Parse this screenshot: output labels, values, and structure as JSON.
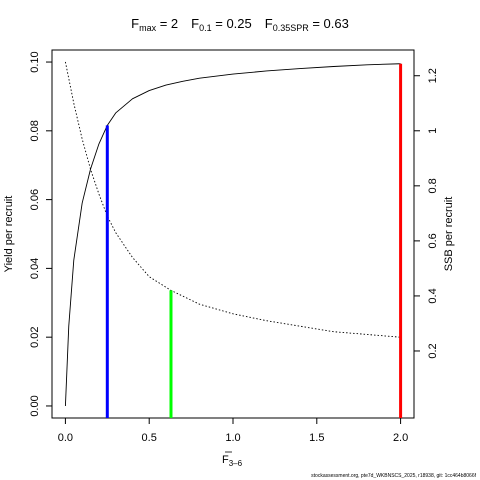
{
  "chart_data": {
    "type": "line",
    "title": {
      "fmax": {
        "sym": "F",
        "sub": "max",
        "eq": " = ",
        "val": "2"
      },
      "f01": {
        "sym": "F",
        "sub": "0.1",
        "eq": " = ",
        "val": "0.25"
      },
      "f35": {
        "sym": "F",
        "sub": "0.35SPR",
        "eq": " = ",
        "val": "0.63"
      }
    },
    "xlabel": {
      "sym": "F",
      "sub": "3–6"
    },
    "ylabel_left": "Yield per recruit",
    "ylabel_right": "SSB per recruit",
    "xlim": [
      -0.08,
      2.08
    ],
    "ylim_left": [
      -0.0035,
      0.1035
    ],
    "ylim_right": [
      -0.0435,
      1.2935
    ],
    "x_ticks": [
      0,
      0.5,
      1,
      1.5,
      2
    ],
    "x_tick_labels": [
      "0.0",
      "0.5",
      "1.0",
      "1.5",
      "2.0"
    ],
    "y_left_ticks": [
      0,
      0.02,
      0.04,
      0.06,
      0.08,
      0.1
    ],
    "y_left_tick_labels": [
      "0.00",
      "0.02",
      "0.04",
      "0.06",
      "0.08",
      "0.10"
    ],
    "y_right_ticks": [
      0.2,
      0.4,
      0.6,
      0.8,
      1.0,
      1.2
    ],
    "y_right_tick_labels": [
      "0.2",
      "0.4",
      "0.6",
      "0.8",
      "1",
      "1.2"
    ],
    "series": [
      {
        "axis": "left",
        "style": "solid",
        "x": [
          0,
          0.02,
          0.05,
          0.1,
          0.15,
          0.2,
          0.25,
          0.3,
          0.4,
          0.5,
          0.6,
          0.7,
          0.8,
          1.0,
          1.2,
          1.4,
          1.6,
          1.8,
          2.0
        ],
        "y": [
          0.0,
          0.0232,
          0.0424,
          0.059,
          0.0689,
          0.0762,
          0.0816,
          0.0852,
          0.0893,
          0.0917,
          0.0933,
          0.0944,
          0.0953,
          0.0965,
          0.0974,
          0.0981,
          0.0987,
          0.0992,
          0.0995
        ]
      },
      {
        "axis": "right",
        "style": "dotted",
        "x": [
          0,
          0.05,
          0.1,
          0.15,
          0.2,
          0.25,
          0.3,
          0.4,
          0.5,
          0.63,
          0.8,
          1.0,
          1.2,
          1.4,
          1.6,
          1.8,
          2.0
        ],
        "y": [
          1.25,
          1.1,
          0.97,
          0.86,
          0.77,
          0.69,
          0.63,
          0.54,
          0.47,
          0.42,
          0.37,
          0.335,
          0.31,
          0.29,
          0.27,
          0.26,
          0.25
        ]
      }
    ],
    "reference_lines": [
      {
        "name": "F0.1",
        "x": 0.25,
        "axis": "left",
        "y": 0.0816,
        "color": "#0000ff"
      },
      {
        "name": "F0.35SPR",
        "x": 0.63,
        "axis": "right",
        "y": 0.42,
        "color": "#00ff00"
      },
      {
        "name": "Fmax",
        "x": 2.0,
        "axis": "left",
        "y": 0.0995,
        "color": "#ff0000"
      }
    ],
    "grid": false
  },
  "footer": {
    "credit": "stockassessment.org, pte7d_WKBNSCS_2025, r18938, git: 1cc464b8066f"
  }
}
